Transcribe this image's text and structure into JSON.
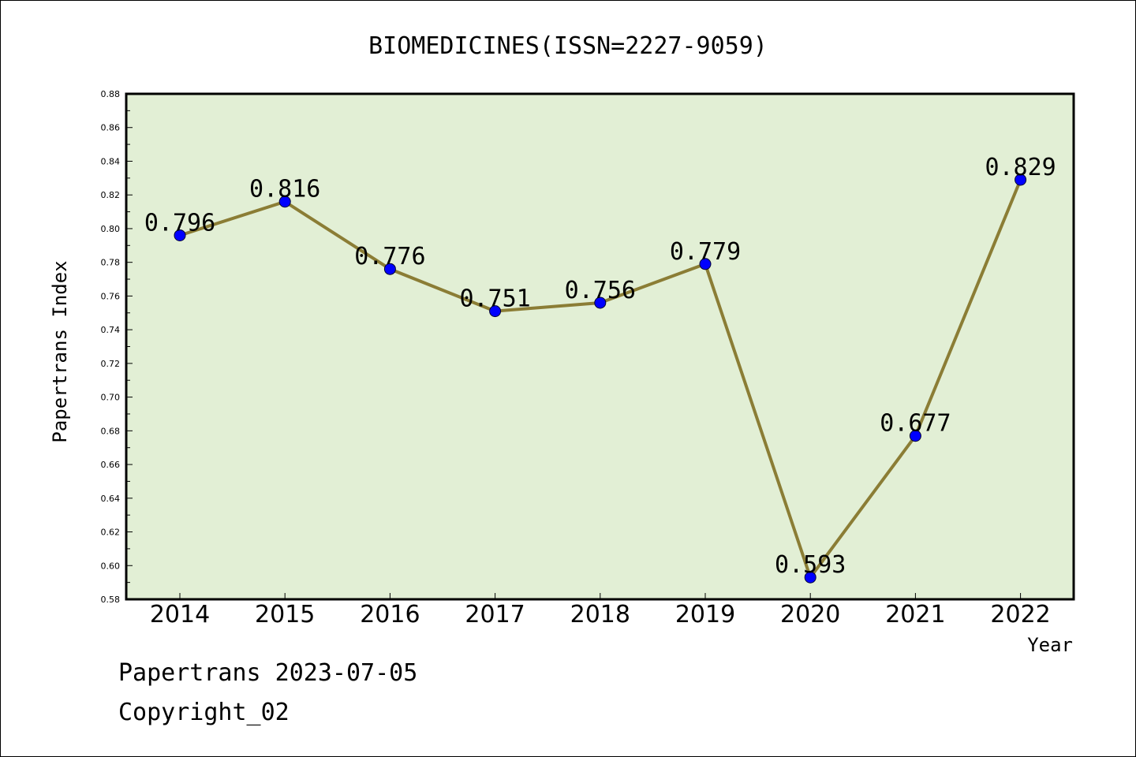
{
  "chart_data": {
    "type": "line",
    "title": "BIOMEDICINES(ISSN=2227-9059)",
    "xlabel": "Year",
    "ylabel": "Papertrans Index",
    "categories": [
      "2014",
      "2015",
      "2016",
      "2017",
      "2018",
      "2019",
      "2020",
      "2021",
      "2022"
    ],
    "series": [
      {
        "values": [
          0.796,
          0.816,
          0.776,
          0.751,
          0.756,
          0.779,
          0.593,
          0.677,
          0.829
        ],
        "data_labels": [
          "0.796",
          "0.816",
          "0.776",
          "0.751",
          "0.756",
          "0.779",
          "0.593",
          "0.677",
          "0.829"
        ],
        "line_color": "#8b7d35",
        "marker_color": "#0000ff"
      }
    ],
    "ylim": [
      0.58,
      0.88
    ],
    "y_ticks": [
      "0.58",
      "0.60",
      "0.62",
      "0.64",
      "0.66",
      "0.68",
      "0.70",
      "0.72",
      "0.74",
      "0.76",
      "0.78",
      "0.80",
      "0.82",
      "0.84",
      "0.86",
      "0.88"
    ],
    "grid": false,
    "plot_background": "#e2efd5"
  },
  "footer": {
    "line1": "Papertrans 2023-07-05",
    "line2": "Copyright_02"
  }
}
